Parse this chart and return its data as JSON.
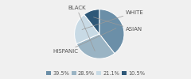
{
  "labels": [
    "HISPANIC",
    "BLACK",
    "WHITE",
    "ASIAN"
  ],
  "values": [
    39.5,
    28.9,
    21.1,
    10.5
  ],
  "colors": [
    "#6b8fa8",
    "#9ab4c4",
    "#c8dae5",
    "#2e5878"
  ],
  "legend_order_colors": [
    "#6b8fa8",
    "#9ab4c4",
    "#c8dae5",
    "#2e5878"
  ],
  "legend_labels": [
    "39.5%",
    "28.9%",
    "21.1%",
    "10.5%"
  ],
  "startangle": 90,
  "figsize": [
    2.4,
    1.0
  ],
  "dpi": 100,
  "bg_color": "#f0f0f0",
  "text_color": "#555555",
  "label_fontsize": 5.0,
  "legend_fontsize": 4.8
}
